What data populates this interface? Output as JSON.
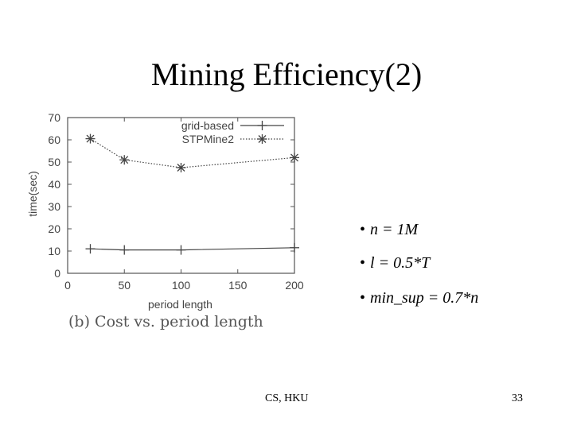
{
  "slide": {
    "title": "Mining Efficiency(2)",
    "bullets": [
      "n = 1M",
      "l = 0.5*T",
      "min_sup = 0.7*n"
    ],
    "footer_center": "CS, HKU",
    "page_number": "33"
  },
  "chart_data": {
    "type": "line",
    "caption": "(b) Cost vs. period length",
    "xlabel": "period length",
    "ylabel": "time(sec)",
    "xlim": [
      0,
      200
    ],
    "ylim": [
      0,
      70
    ],
    "xticks": [
      0,
      50,
      100,
      150,
      200
    ],
    "yticks": [
      0,
      10,
      20,
      30,
      40,
      50,
      60,
      70
    ],
    "grid": false,
    "legend_position": "top-right",
    "series": [
      {
        "name": "grid-based",
        "marker": "plus",
        "line": "solid",
        "x": [
          20,
          50,
          100,
          200
        ],
        "y": [
          11,
          10.5,
          10.5,
          11.5
        ]
      },
      {
        "name": "STPMine2",
        "marker": "star",
        "line": "dotted",
        "x": [
          20,
          50,
          100,
          200
        ],
        "y": [
          60.5,
          51,
          47.5,
          52
        ]
      }
    ]
  }
}
